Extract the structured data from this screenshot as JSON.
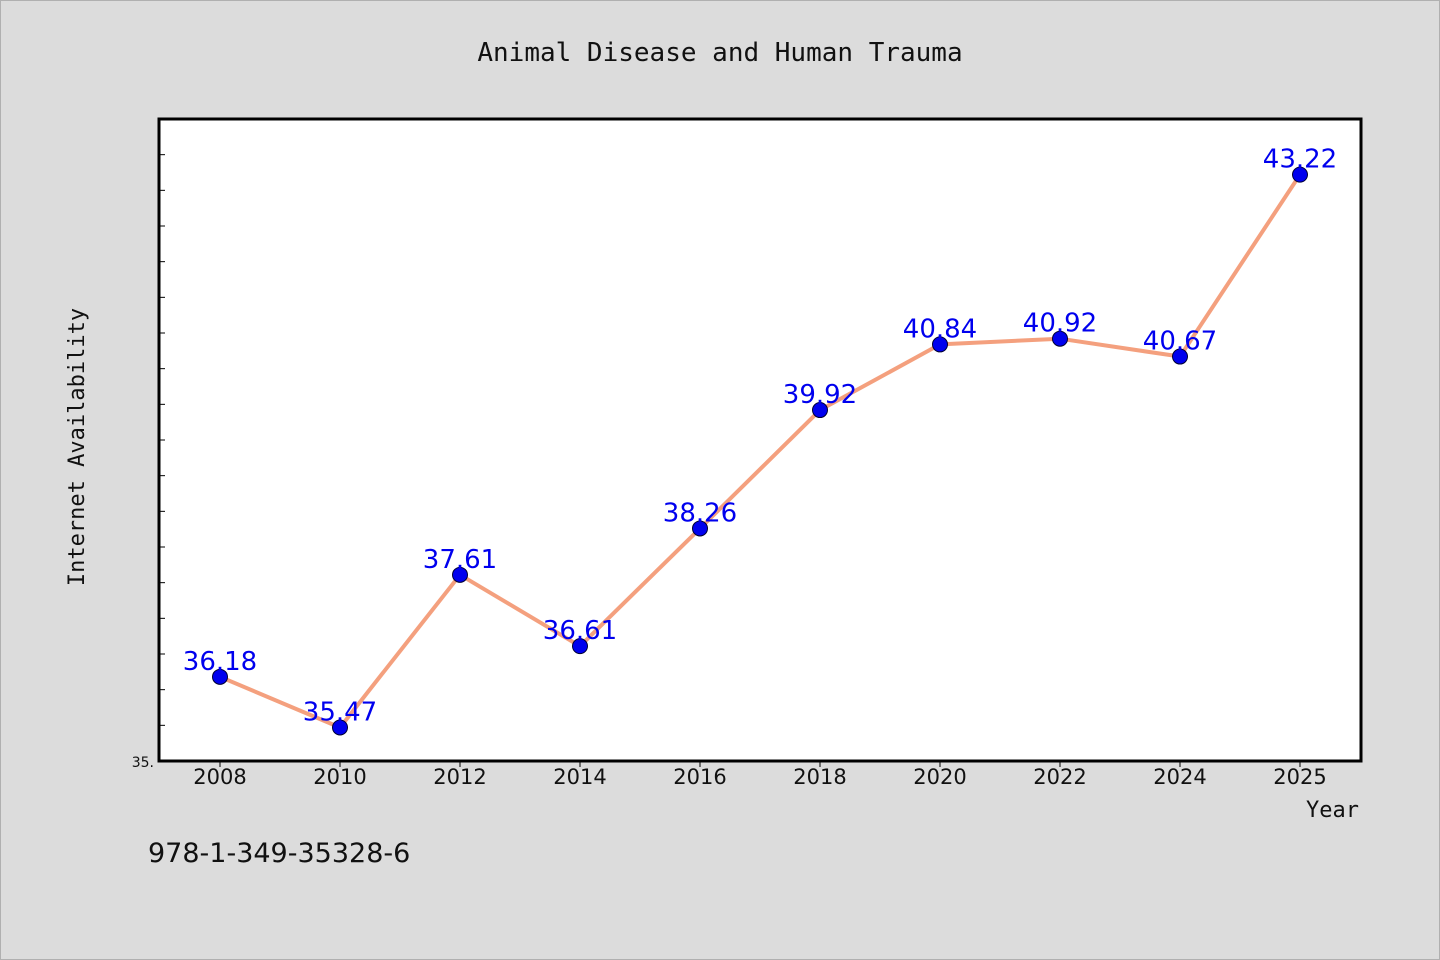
{
  "chart_data": {
    "type": "line",
    "title": "Animal Disease and Human Trauma",
    "xlabel": "Year",
    "ylabel": "Internet Availability",
    "x": [
      "2008",
      "2010",
      "2012",
      "2014",
      "2016",
      "2018",
      "2020",
      "2022",
      "2024",
      "2025"
    ],
    "series": [
      {
        "values": [
          36.18,
          35.47,
          37.61,
          36.61,
          38.26,
          39.92,
          40.84,
          40.92,
          40.67,
          43.22
        ],
        "labels": [
          "36.18",
          "35.47",
          "37.61",
          "36.61",
          "38.26",
          "39.92",
          "40.84",
          "40.92",
          "40.67",
          "43.22"
        ]
      }
    ],
    "y_tick_labels": [
      "35."
    ],
    "ylim": [
      35.0,
      44.0
    ],
    "grid": false,
    "line_color": "#f4a07e",
    "marker_color": "#0000ee",
    "label_color": "#0000ee"
  },
  "footer": {
    "code": "978-1-349-35328-6"
  }
}
